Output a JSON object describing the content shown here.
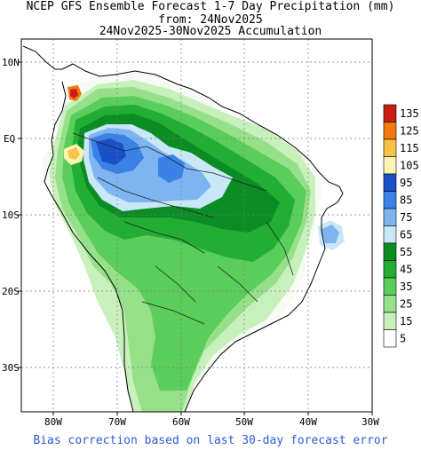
{
  "title": {
    "line1": "NCEP GFS Ensemble Forecast 1-7 Day Precipitation (mm)",
    "line2": "from: 24Nov2025",
    "line3": "24Nov2025-30Nov2025 Accumulation"
  },
  "axes": {
    "lat_labels": [
      "10N",
      "EQ",
      "10S",
      "20S",
      "30S"
    ],
    "lon_labels": [
      "80W",
      "70W",
      "60W",
      "50W",
      "40W",
      "30W"
    ],
    "lon_range": [
      -85,
      -30
    ],
    "lat_range": [
      -36,
      13.5
    ]
  },
  "legend": {
    "levels": [
      {
        "label": "135",
        "color": "#c81e10"
      },
      {
        "label": "125",
        "color": "#f5780f"
      },
      {
        "label": "115",
        "color": "#f8c247"
      },
      {
        "label": "105",
        "color": "#fcf3b4"
      },
      {
        "label": "95",
        "color": "#1a50c8"
      },
      {
        "label": "85",
        "color": "#3a82e6"
      },
      {
        "label": "75",
        "color": "#7eb4f2"
      },
      {
        "label": "65",
        "color": "#c8e8f8"
      },
      {
        "label": "55",
        "color": "#0c8c24"
      },
      {
        "label": "45",
        "color": "#22ae33"
      },
      {
        "label": "35",
        "color": "#5acd5a"
      },
      {
        "label": "25",
        "color": "#96e08a"
      },
      {
        "label": "15",
        "color": "#c8f0bc"
      },
      {
        "label": "5",
        "color": "#ffffff"
      }
    ]
  },
  "footer": "Bias correction based on last 30-day forecast error"
}
